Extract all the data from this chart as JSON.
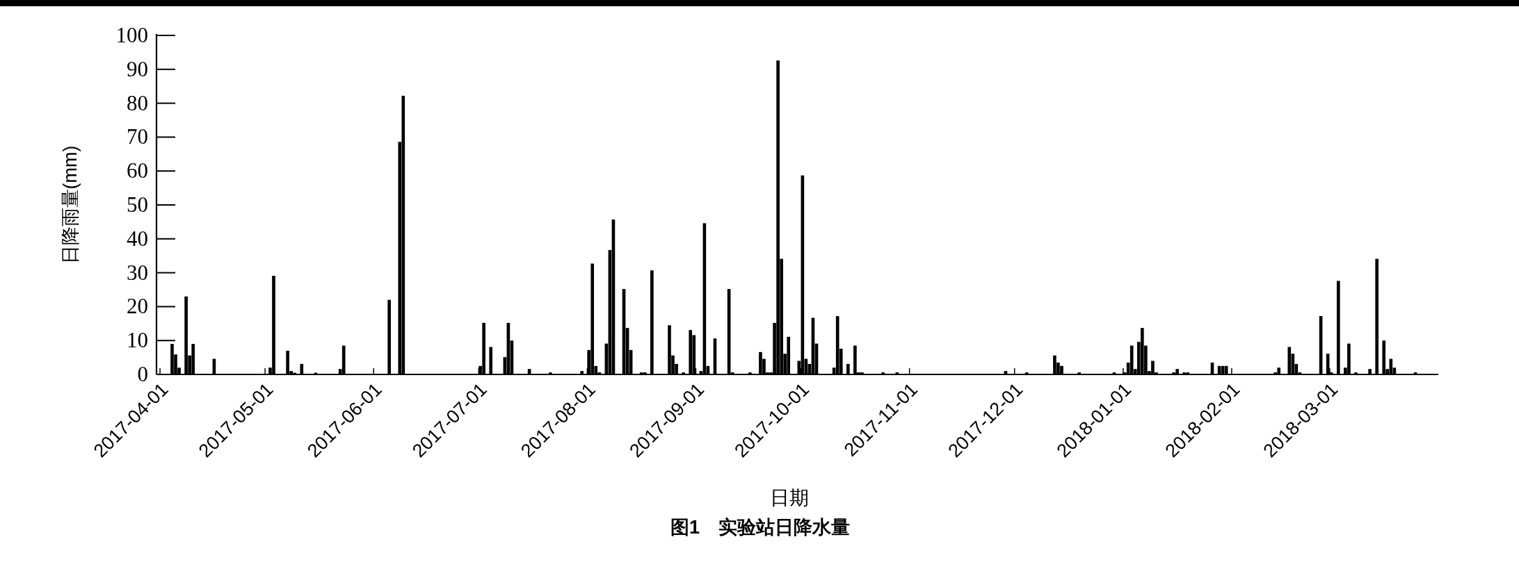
{
  "chart_data": {
    "type": "bar",
    "title": "图1　实验站日降水量",
    "xlabel": "日期",
    "ylabel": "日降雨量(mm)",
    "x": [
      "2017-04-04",
      "2017-04-05",
      "2017-04-06",
      "2017-04-08",
      "2017-04-09",
      "2017-04-10",
      "2017-04-16",
      "2017-05-02",
      "2017-05-03",
      "2017-05-07",
      "2017-05-08",
      "2017-05-09",
      "2017-05-11",
      "2017-05-15",
      "2017-05-22",
      "2017-05-23",
      "2017-06-05",
      "2017-06-08",
      "2017-06-09",
      "2017-07-01",
      "2017-07-02",
      "2017-07-04",
      "2017-07-08",
      "2017-07-09",
      "2017-07-10",
      "2017-07-15",
      "2017-07-21",
      "2017-07-30",
      "2017-08-01",
      "2017-08-02",
      "2017-08-03",
      "2017-08-04",
      "2017-08-06",
      "2017-08-07",
      "2017-08-08",
      "2017-08-11",
      "2017-08-12",
      "2017-08-13",
      "2017-08-16",
      "2017-08-17",
      "2017-08-19",
      "2017-08-24",
      "2017-08-25",
      "2017-08-26",
      "2017-08-28",
      "2017-08-30",
      "2017-08-31",
      "2017-09-02",
      "2017-09-03",
      "2017-09-04",
      "2017-09-06",
      "2017-09-10",
      "2017-09-11",
      "2017-09-16",
      "2017-09-19",
      "2017-09-20",
      "2017-09-21",
      "2017-09-22",
      "2017-09-23",
      "2017-09-24",
      "2017-09-25",
      "2017-09-26",
      "2017-09-27",
      "2017-09-30",
      "2017-10-01",
      "2017-10-02",
      "2017-10-03",
      "2017-10-04",
      "2017-10-05",
      "2017-10-10",
      "2017-10-11",
      "2017-10-12",
      "2017-10-14",
      "2017-10-16",
      "2017-10-17",
      "2017-10-18",
      "2017-10-24",
      "2017-10-28",
      "2017-11-28",
      "2017-12-04",
      "2017-12-12",
      "2017-12-13",
      "2017-12-14",
      "2017-12-19",
      "2017-12-29",
      "2018-01-01",
      "2018-01-02",
      "2018-01-03",
      "2018-01-04",
      "2018-01-05",
      "2018-01-06",
      "2018-01-07",
      "2018-01-08",
      "2018-01-09",
      "2018-01-10",
      "2018-01-15",
      "2018-01-16",
      "2018-01-18",
      "2018-01-19",
      "2018-01-26",
      "2018-01-28",
      "2018-01-29",
      "2018-01-30",
      "2018-02-13",
      "2018-02-14",
      "2018-02-17",
      "2018-02-18",
      "2018-02-19",
      "2018-02-20",
      "2018-02-26",
      "2018-02-28",
      "2018-03-01",
      "2018-03-03",
      "2018-03-05",
      "2018-03-06",
      "2018-03-08",
      "2018-03-12",
      "2018-03-14",
      "2018-03-16",
      "2018-03-17",
      "2018-03-18",
      "2018-03-19",
      "2018-03-25"
    ],
    "values": [
      9.0,
      5.9,
      2.0,
      23.0,
      5.6,
      9.0,
      4.6,
      2.0,
      29.1,
      7.0,
      1.0,
      0.5,
      3.1,
      0.5,
      1.6,
      8.5,
      22.0,
      68.6,
      82.2,
      2.5,
      15.2,
      8.1,
      5.1,
      15.2,
      10.0,
      1.6,
      0.6,
      1.0,
      7.2,
      32.7,
      2.5,
      0.6,
      9.1,
      36.7,
      45.7,
      25.2,
      13.7,
      7.2,
      0.6,
      0.6,
      30.7,
      14.5,
      5.6,
      3.1,
      0.6,
      13.1,
      11.6,
      1.0,
      44.6,
      2.5,
      10.6,
      25.2,
      0.6,
      0.6,
      6.6,
      4.6,
      0.6,
      0.6,
      15.2,
      92.6,
      34.1,
      6.1,
      11.1,
      4.0,
      58.7,
      4.6,
      3.1,
      16.7,
      9.1,
      2.0,
      17.2,
      7.6,
      3.1,
      8.5,
      0.6,
      0.6,
      0.6,
      0.6,
      1.0,
      0.6,
      5.6,
      3.5,
      2.5,
      0.6,
      0.6,
      0.6,
      3.5,
      8.5,
      1.6,
      9.6,
      13.7,
      8.5,
      1.0,
      4.0,
      0.6,
      0.6,
      1.6,
      0.6,
      0.6,
      3.5,
      2.5,
      2.5,
      2.5,
      0.6,
      2.0,
      8.1,
      6.1,
      3.1,
      0.6,
      17.2,
      6.1,
      0.6,
      27.6,
      2.0,
      9.1,
      0.6,
      1.6,
      34.1,
      10.0,
      1.6,
      4.6,
      2.0,
      0.6
    ],
    "color": "#000000",
    "xlim": [
      "2017-03-31",
      "2018-04-01"
    ],
    "xticks": [
      "2017-04-01",
      "2017-05-01",
      "2017-06-01",
      "2017-07-01",
      "2017-08-01",
      "2017-09-01",
      "2017-10-01",
      "2017-11-01",
      "2017-12-01",
      "2018-01-01",
      "2018-02-01",
      "2018-03-01"
    ],
    "ylim": [
      0,
      100
    ],
    "yticks": [
      0,
      10,
      20,
      30,
      40,
      50,
      60,
      70,
      80,
      90,
      100
    ]
  }
}
